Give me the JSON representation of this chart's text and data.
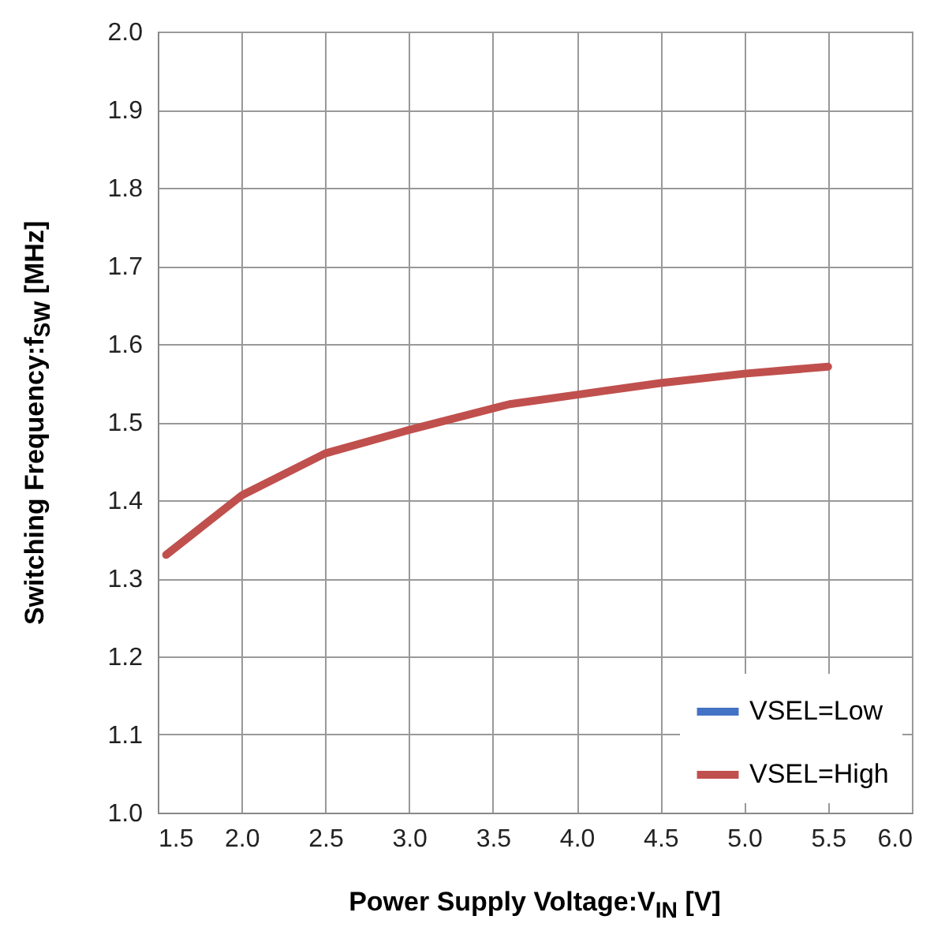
{
  "chart_data": {
    "type": "line",
    "xlabel": "Power Supply  Voltage:V$_{IN}$ [V]",
    "ylabel": "Switching Frequency:f$_{SW}$ [MHz]",
    "x": [
      1.55,
      2.0,
      2.5,
      3.0,
      3.6,
      4.0,
      4.5,
      5.0,
      5.5
    ],
    "series": [
      {
        "name": "VSEL=Low",
        "color": "#4472c4",
        "values": [
          null,
          null,
          null,
          null,
          null,
          null,
          null,
          null,
          null
        ]
      },
      {
        "name": "VSEL=High",
        "color": "#c0504d",
        "values": [
          1.33,
          1.406,
          1.46,
          1.49,
          1.523,
          1.535,
          1.55,
          1.562,
          1.571
        ]
      }
    ],
    "xlim": [
      1.5,
      6.0
    ],
    "xticks": [
      {
        "value": 1.5,
        "label": "1.5"
      },
      {
        "value": 2,
        "label": "2.0"
      },
      {
        "value": 2.5,
        "label": "2.5"
      },
      {
        "value": 3,
        "label": "3.0"
      },
      {
        "value": 3.5,
        "label": "3.5"
      },
      {
        "value": 4,
        "label": "4.0"
      },
      {
        "value": 4.5,
        "label": "4.5"
      },
      {
        "value": 5,
        "label": "5.0"
      },
      {
        "value": 5.5,
        "label": "5.5"
      },
      {
        "value": 6,
        "label": "6.0"
      }
    ],
    "ylim": [
      1.0,
      2.0
    ],
    "yticks": [
      {
        "value": 1,
        "label": "1.0"
      },
      {
        "value": 1.1,
        "label": "1.1"
      },
      {
        "value": 1.2,
        "label": "1.2"
      },
      {
        "value": 1.3,
        "label": "1.3"
      },
      {
        "value": 1.4,
        "label": "1.4"
      },
      {
        "value": 1.5,
        "label": "1.5"
      },
      {
        "value": 1.6,
        "label": "1.6"
      },
      {
        "value": 1.7,
        "label": "1.7"
      },
      {
        "value": 1.8,
        "label": "1.8"
      },
      {
        "value": 1.9,
        "label": "1.9"
      },
      {
        "value": 2,
        "label": "2.0"
      }
    ],
    "grid": true,
    "legend": "bottom right",
    "line_style": "solid",
    "marker": "none"
  }
}
